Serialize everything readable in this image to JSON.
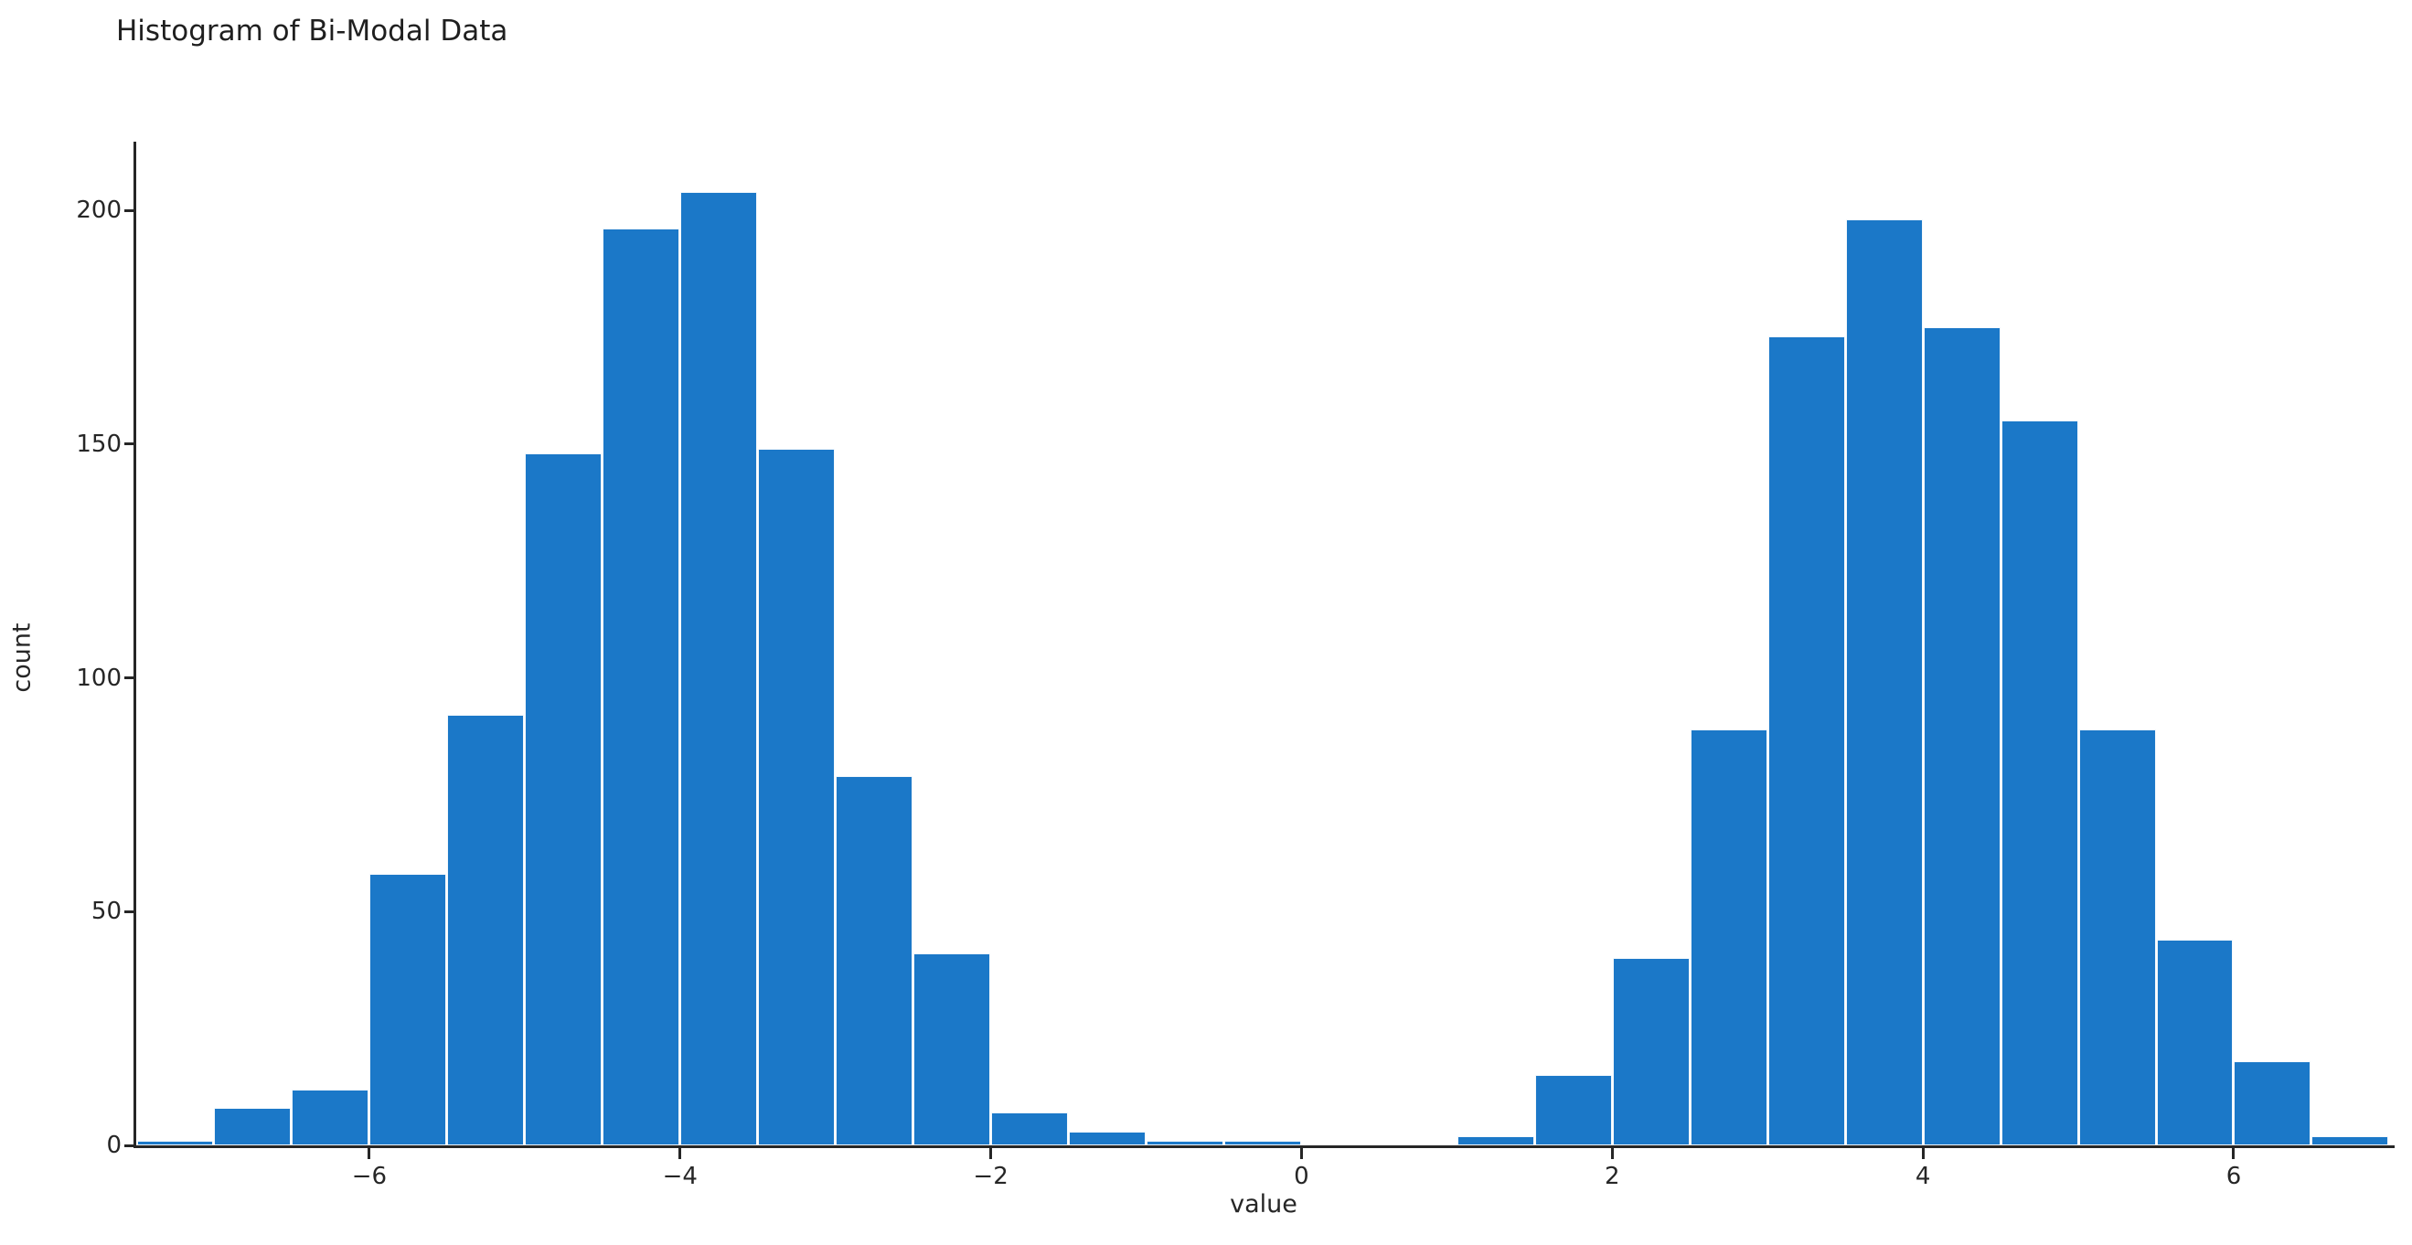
{
  "chart_data": {
    "type": "bar",
    "subtype": "histogram",
    "title": "Histogram of Bi-Modal Data",
    "xlabel": "value",
    "ylabel": "count",
    "bar_color": "#1b78c8",
    "background_color": "#ffffff",
    "spine_color": "#262626",
    "grid": false,
    "legend": false,
    "bin_width": 0.5,
    "xlim": [
      -7.5,
      7.03
    ],
    "ylim": [
      0,
      215
    ],
    "x_ticks": [
      {
        "v": -6,
        "label": "−6"
      },
      {
        "v": -4,
        "label": "−4"
      },
      {
        "v": -2,
        "label": "−2"
      },
      {
        "v": 0,
        "label": "0"
      },
      {
        "v": 2,
        "label": "2"
      },
      {
        "v": 4,
        "label": "4"
      },
      {
        "v": 6,
        "label": "6"
      }
    ],
    "y_ticks": [
      {
        "v": 0,
        "label": "0"
      },
      {
        "v": 50,
        "label": "50"
      },
      {
        "v": 100,
        "label": "100"
      },
      {
        "v": 150,
        "label": "150"
      },
      {
        "v": 200,
        "label": "200"
      }
    ],
    "bins": [
      {
        "start": -7.5,
        "end": -7.0,
        "count": 1
      },
      {
        "start": -7.0,
        "end": -6.5,
        "count": 8
      },
      {
        "start": -6.5,
        "end": -6.0,
        "count": 12
      },
      {
        "start": -6.0,
        "end": -5.5,
        "count": 58
      },
      {
        "start": -5.5,
        "end": -5.0,
        "count": 92
      },
      {
        "start": -5.0,
        "end": -4.5,
        "count": 148
      },
      {
        "start": -4.5,
        "end": -4.0,
        "count": 196
      },
      {
        "start": -4.0,
        "end": -3.5,
        "count": 204
      },
      {
        "start": -3.5,
        "end": -3.0,
        "count": 149
      },
      {
        "start": -3.0,
        "end": -2.5,
        "count": 79
      },
      {
        "start": -2.5,
        "end": -2.0,
        "count": 41
      },
      {
        "start": -2.0,
        "end": -1.5,
        "count": 7
      },
      {
        "start": -1.5,
        "end": -1.0,
        "count": 3
      },
      {
        "start": -1.0,
        "end": -0.5,
        "count": 1
      },
      {
        "start": -0.5,
        "end": 0.0,
        "count": 1
      },
      {
        "start": 0.0,
        "end": 0.5,
        "count": 0
      },
      {
        "start": 0.5,
        "end": 1.0,
        "count": 0
      },
      {
        "start": 1.0,
        "end": 1.5,
        "count": 2
      },
      {
        "start": 1.5,
        "end": 2.0,
        "count": 15
      },
      {
        "start": 2.0,
        "end": 2.5,
        "count": 40
      },
      {
        "start": 2.5,
        "end": 3.0,
        "count": 89
      },
      {
        "start": 3.0,
        "end": 3.5,
        "count": 173
      },
      {
        "start": 3.5,
        "end": 4.0,
        "count": 198
      },
      {
        "start": 4.0,
        "end": 4.5,
        "count": 175
      },
      {
        "start": 4.5,
        "end": 5.0,
        "count": 155
      },
      {
        "start": 5.0,
        "end": 5.5,
        "count": 89
      },
      {
        "start": 5.5,
        "end": 6.0,
        "count": 44
      },
      {
        "start": 6.0,
        "end": 6.5,
        "count": 18
      },
      {
        "start": 6.5,
        "end": 7.0,
        "count": 2
      }
    ]
  }
}
